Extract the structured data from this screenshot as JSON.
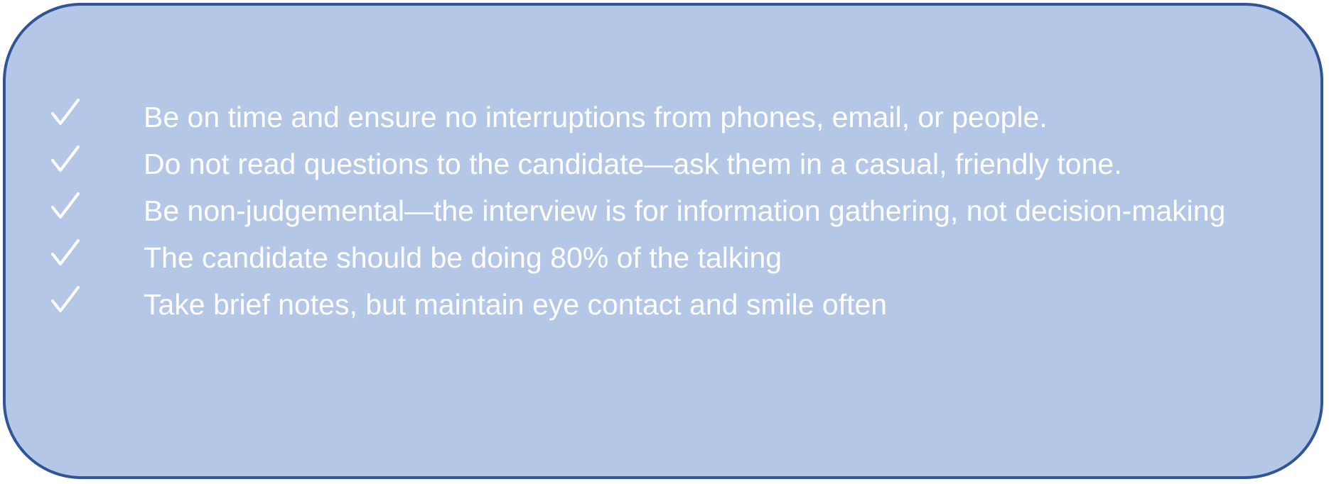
{
  "checklist": {
    "icon": "check-icon",
    "colors": {
      "panel_fill": "#b4c7e7",
      "panel_border": "#2f5597",
      "text": "#ffffff"
    },
    "items": [
      {
        "text": "Be on time and ensure no interruptions from phones, email, or people."
      },
      {
        "text": "Do not read questions to the candidate—ask them in a casual, friendly tone."
      },
      {
        "text": "Be non-judgemental—the interview is for information gathering, not decision-making"
      },
      {
        "text": "The candidate should be doing 80% of the talking"
      },
      {
        "text": "Take brief notes, but maintain eye contact and smile often"
      }
    ]
  }
}
